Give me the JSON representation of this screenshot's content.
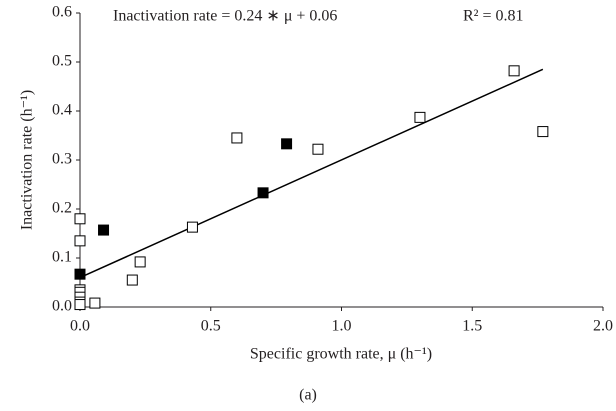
{
  "chart_data": {
    "type": "scatter",
    "annotations": [
      "Inactivation rate = 0.24 ∗ μ + 0.06",
      "R² = 0.81"
    ],
    "xlabel": "Specific growth rate, μ (h⁻¹)",
    "ylabel": "Inactivation rate (h⁻¹)",
    "caption": "(a)",
    "xlim": [
      0,
      2
    ],
    "ylim": [
      0,
      0.6
    ],
    "xticks": [
      {
        "value": 0,
        "label": "0.0"
      },
      0.5,
      {
        "value": 1,
        "label": "1.0"
      },
      1.5,
      {
        "value": 2,
        "label": "2.0"
      }
    ],
    "yticks": [
      {
        "value": 0,
        "label": "0.0"
      },
      0.1,
      0.2,
      0.3,
      0.4,
      0.5,
      0.6
    ],
    "grid": false,
    "series": [
      {
        "marker": "open",
        "color": "#000000",
        "x": [
          0,
          0,
          0,
          0,
          0,
          0,
          0,
          0.057,
          0.2,
          0.23,
          0.43,
          0.6,
          0.91,
          1.3,
          1.66,
          1.77
        ],
        "values": [
          0.18,
          0.135,
          0.035,
          0.03,
          0.02,
          0.01,
          0.005,
          0.008,
          0.055,
          0.092,
          0.163,
          0.345,
          0.322,
          0.387,
          0.482,
          0.358
        ]
      },
      {
        "marker": "filled",
        "color": "#000000",
        "x": [
          0,
          0.09,
          0.7,
          0.79
        ],
        "values": [
          0.067,
          0.157,
          0.233,
          0.333
        ]
      }
    ],
    "trendline": {
      "color": "#000000",
      "x": [
        0,
        1.77
      ],
      "values": [
        0.06,
        0.485
      ]
    }
  }
}
